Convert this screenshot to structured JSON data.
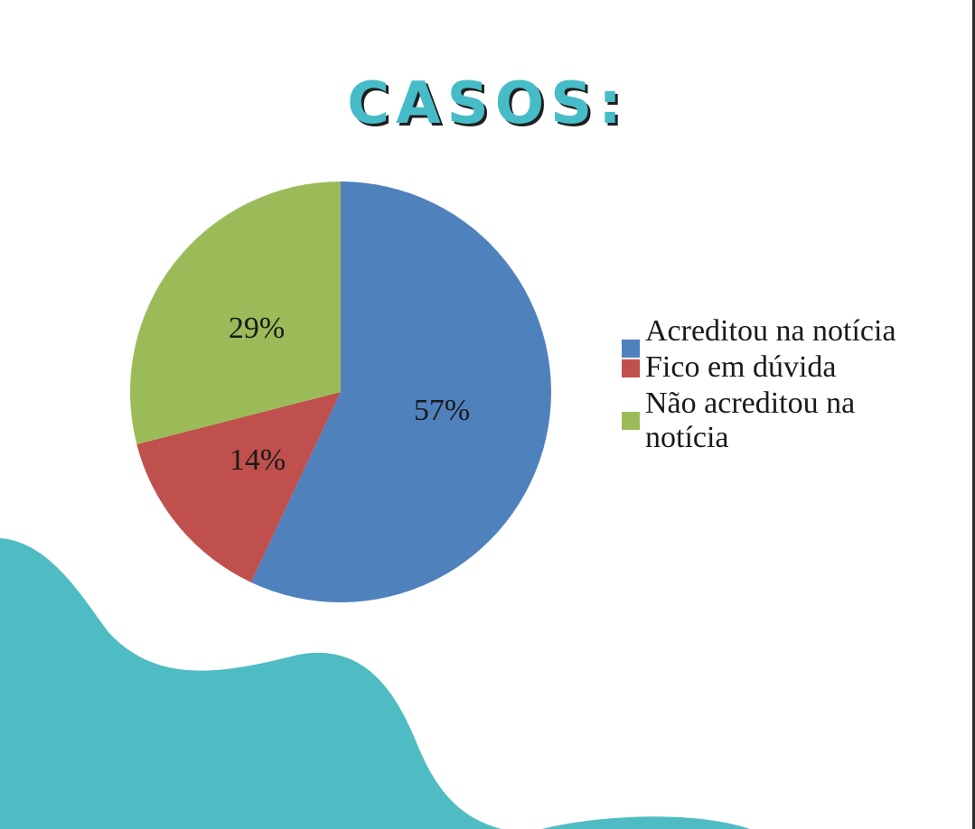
{
  "title": "CASOS:",
  "colors": {
    "accent": "#46bcc8",
    "blob": "#4fbcc3",
    "series_blue": "#4f81bd",
    "series_red": "#c0504d",
    "series_green": "#9bbb59"
  },
  "chart_data": {
    "type": "pie",
    "title": "",
    "slices": [
      {
        "label": "Acreditou na notícia",
        "value": 57,
        "display": "57%",
        "color": "#4f81bd"
      },
      {
        "label": "Fico em dúvida",
        "value": 14,
        "display": "14%",
        "color": "#c0504d"
      },
      {
        "label": "Não acreditou na notícia",
        "value": 29,
        "display": "29%",
        "color": "#9bbb59"
      }
    ],
    "legend": {
      "placement": "right",
      "items": [
        {
          "text": "Acreditou na notícia",
          "color": "#4f81bd"
        },
        {
          "text": "Fico em dúvida",
          "color": "#c0504d"
        },
        {
          "text": "Não acreditou na notícia",
          "color": "#9bbb59"
        }
      ]
    }
  }
}
